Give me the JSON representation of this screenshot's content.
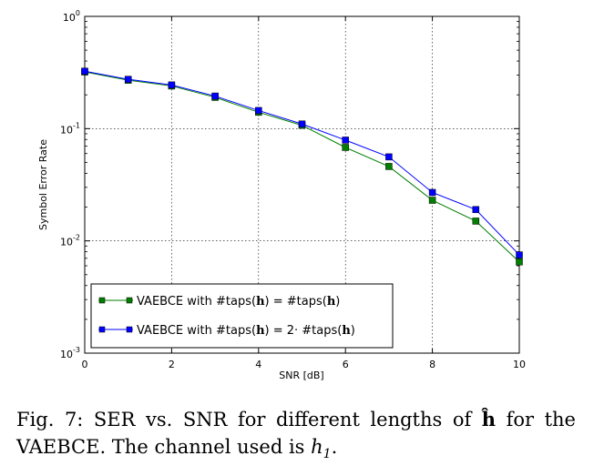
{
  "chart_data": {
    "type": "line",
    "xlabel": "SNR [dB]",
    "ylabel": "Symbol Error Rate",
    "xlim": [
      0,
      10
    ],
    "ylim": [
      0.001,
      1
    ],
    "yscale": "log",
    "grid": true,
    "x": [
      0,
      1,
      2,
      3,
      4,
      5,
      6,
      7,
      8,
      9,
      10
    ],
    "xticks": [
      "0",
      "2",
      "4",
      "6",
      "8",
      "10"
    ],
    "yticks": [
      {
        "base": "10",
        "exp": "0"
      },
      {
        "base": "10",
        "exp": "-1"
      },
      {
        "base": "10",
        "exp": "-2"
      },
      {
        "base": "10",
        "exp": "-3"
      }
    ],
    "legend_position": "lower-left",
    "series": [
      {
        "name": "VAEBCE with #taps(ĥ) = #taps(h)",
        "legend_prefix": "VAEBCE with #taps(",
        "legend_hat": "h",
        "legend_mid": ") = #taps(",
        "legend_h": "h",
        "legend_suffix": ")",
        "color": "#007f00",
        "values": [
          0.32,
          0.27,
          0.24,
          0.19,
          0.14,
          0.107,
          0.068,
          0.046,
          0.023,
          0.015,
          0.0065
        ]
      },
      {
        "name": "VAEBCE with #taps(ĥ) = 2· #taps(h)",
        "legend_prefix": "VAEBCE with #taps(",
        "legend_hat": "h",
        "legend_mid": ") = 2· #taps(",
        "legend_h": "h",
        "legend_suffix": ")",
        "color": "#0000ff",
        "values": [
          0.325,
          0.275,
          0.245,
          0.195,
          0.145,
          0.11,
          0.079,
          0.056,
          0.027,
          0.019,
          0.0075
        ]
      }
    ]
  },
  "caption": {
    "prefix": "Fig. 7: SER vs. SNR for different lengths of ",
    "hvar": "ĥ",
    "middle": " for the VAEBCE. The channel used is ",
    "channel_var": "h",
    "channel_sub": "1",
    "suffix": "."
  }
}
